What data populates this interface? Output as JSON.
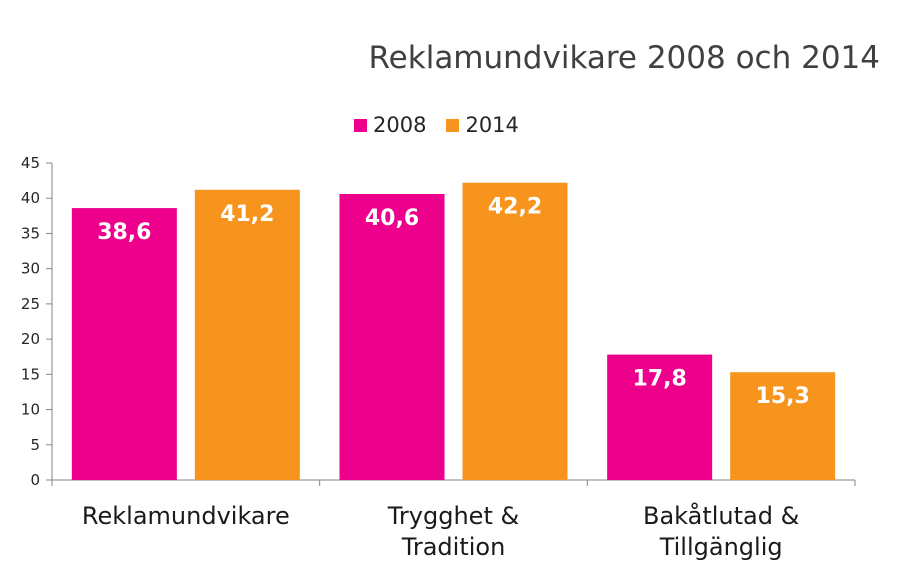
{
  "chart_data": {
    "type": "bar",
    "title": "Reklamundvikare 2008 och 2014",
    "categories": [
      [
        "Reklamundvikare"
      ],
      [
        "Trygghet &",
        "Tradition"
      ],
      [
        "Bakåtlutad &",
        "Tillgänglig"
      ]
    ],
    "series": [
      {
        "name": "2008",
        "color": "#ec008c",
        "values": [
          38.6,
          40.6,
          17.8
        ],
        "labels": [
          "38,6",
          "40,6",
          "17,8"
        ]
      },
      {
        "name": "2014",
        "color": "#f7941d",
        "values": [
          41.2,
          42.2,
          15.3
        ],
        "labels": [
          "41,2",
          "42,2",
          "15,3"
        ]
      }
    ],
    "ylim": [
      0,
      45
    ],
    "yticks": [
      0,
      5,
      10,
      15,
      20,
      25,
      30,
      35,
      40,
      45
    ],
    "legend_position": "top",
    "grid": false
  }
}
